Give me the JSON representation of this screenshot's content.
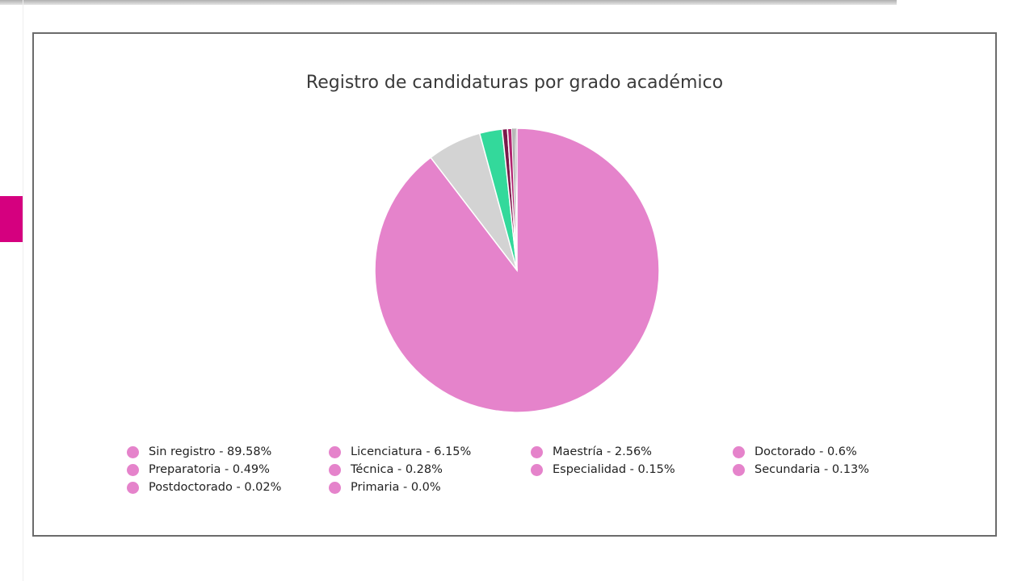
{
  "chart_data": {
    "type": "pie",
    "title": "Registro de candidaturas por grado académico",
    "categories": [
      "Sin registro",
      "Licenciatura",
      "Maestría",
      "Doctorado",
      "Preparatoria",
      "Técnica",
      "Especialidad",
      "Secundaria",
      "Postdoctorado",
      "Primaria"
    ],
    "values": [
      89.58,
      6.15,
      2.56,
      0.6,
      0.49,
      0.28,
      0.15,
      0.13,
      0.02,
      0.0
    ],
    "labels": [
      "Sin registro - 89.58%",
      "Licenciatura - 6.15%",
      "Maestría - 2.56%",
      "Doctorado - 0.6%",
      "Preparatoria - 0.49%",
      "Técnica - 0.28%",
      "Especialidad - 0.15%",
      "Secundaria - 0.13%",
      "Postdoctorado - 0.02%",
      "Primaria - 0.0%"
    ],
    "slice_colors": [
      "#e583cb",
      "#d3d3d3",
      "#33d99b",
      "#7a1a4a",
      "#b0236e",
      "#aaaaaa",
      "#888888",
      "#b0b0b0",
      "#999999",
      "#cccccc"
    ],
    "legend_dot_color": "#e583cb",
    "legend_placement": "bottom"
  },
  "colors": {
    "accent": "#d5007f",
    "panel_border": "#6b6b6b"
  }
}
